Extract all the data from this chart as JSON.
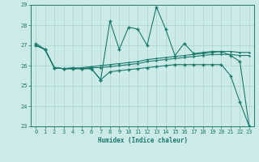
{
  "title": "",
  "xlabel": "Humidex (Indice chaleur)",
  "xlim": [
    -0.5,
    23.5
  ],
  "ylim": [
    23,
    29
  ],
  "yticks": [
    23,
    24,
    25,
    26,
    27,
    28,
    29
  ],
  "xticks": [
    0,
    1,
    2,
    3,
    4,
    5,
    6,
    7,
    8,
    9,
    10,
    11,
    12,
    13,
    14,
    15,
    16,
    17,
    18,
    19,
    20,
    21,
    22,
    23
  ],
  "bg_color": "#cceae7",
  "grid_color": "#aad4d0",
  "line_color": "#1a7a6e",
  "series1_x": [
    0,
    1,
    2,
    3,
    4,
    5,
    6,
    7,
    8,
    9,
    10,
    11,
    12,
    13,
    14,
    15,
    16,
    17,
    18,
    19,
    20,
    21,
    22,
    23
  ],
  "series1_y": [
    27.1,
    26.8,
    25.9,
    25.85,
    25.85,
    25.85,
    25.85,
    25.3,
    28.2,
    26.8,
    27.9,
    27.8,
    27.0,
    28.9,
    27.8,
    26.5,
    27.1,
    26.6,
    26.65,
    26.7,
    26.7,
    26.5,
    26.2,
    23.0
  ],
  "series2_x": [
    0,
    1,
    2,
    3,
    4,
    5,
    6,
    7,
    8,
    9,
    10,
    11,
    12,
    13,
    14,
    15,
    16,
    17,
    18,
    19,
    20,
    21,
    22,
    23
  ],
  "series2_y": [
    27.0,
    26.8,
    25.9,
    25.85,
    25.85,
    25.9,
    25.95,
    26.0,
    26.05,
    26.1,
    26.15,
    26.2,
    26.3,
    26.35,
    26.4,
    26.45,
    26.5,
    26.55,
    26.6,
    26.65,
    26.7,
    26.7,
    26.65,
    26.65
  ],
  "series3_x": [
    0,
    1,
    2,
    3,
    4,
    5,
    6,
    7,
    8,
    9,
    10,
    11,
    12,
    13,
    14,
    15,
    16,
    17,
    18,
    19,
    20,
    21,
    22,
    23
  ],
  "series3_y": [
    27.0,
    26.8,
    25.9,
    25.85,
    25.85,
    25.85,
    25.9,
    25.9,
    25.95,
    26.0,
    26.05,
    26.1,
    26.2,
    26.25,
    26.3,
    26.35,
    26.4,
    26.45,
    26.5,
    26.55,
    26.55,
    26.55,
    26.5,
    26.5
  ],
  "series4_x": [
    0,
    1,
    2,
    3,
    4,
    5,
    6,
    7,
    8,
    9,
    10,
    11,
    12,
    13,
    14,
    15,
    16,
    17,
    18,
    19,
    20,
    21,
    22,
    23
  ],
  "series4_y": [
    27.0,
    26.8,
    25.9,
    25.85,
    25.9,
    25.85,
    25.85,
    25.3,
    25.7,
    25.75,
    25.8,
    25.85,
    25.9,
    25.95,
    26.0,
    26.05,
    26.05,
    26.05,
    26.05,
    26.05,
    26.05,
    25.5,
    24.2,
    23.0
  ],
  "marker": "+",
  "markersize": 3.5,
  "linewidth": 0.8
}
